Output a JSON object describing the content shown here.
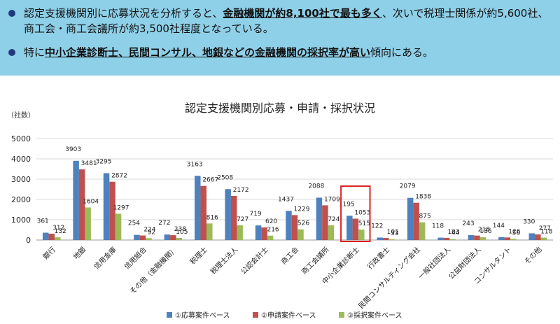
{
  "bullets": [
    {
      "parts": [
        {
          "t": "認定支援機関別に応募状況を分析すると、"
        },
        {
          "t": "金融機関が約8,100社で最も多く",
          "b": true
        },
        {
          "t": "、次いで税理士関係が約5,600社、商工会・商工会議所が約3,500社程度となっている。"
        }
      ]
    },
    {
      "parts": [
        {
          "t": "特に"
        },
        {
          "t": "中小企業診断士、民間コンサル、地銀などの金融機関の採択率が高い",
          "b": true
        },
        {
          "t": "傾向にある。"
        }
      ]
    }
  ],
  "colors": {
    "banner": "#8fd0e9",
    "bullet": "#1f3a7a",
    "series": [
      "#4f81bd",
      "#c0504d",
      "#9bbb59"
    ],
    "highlight": "#e02020",
    "grid": "#d9d9d9"
  },
  "chart_data": {
    "type": "bar",
    "title": "認定支援機関別応募・申請・採択状況",
    "ylabel": "（社数）",
    "xlabel": "",
    "ylim": [
      0,
      5000
    ],
    "yticks": [
      0,
      1000,
      2000,
      3000,
      4000,
      5000
    ],
    "grid": true,
    "legend_position": "bottom",
    "categories": [
      "銀行",
      "地銀",
      "信用金庫",
      "信用組合",
      "その他（金融機関）",
      "税理士",
      "税理士法人",
      "公認会計士",
      "商工会",
      "商工会議所",
      "中小企業診断士",
      "行政書士",
      "民間コンサルティング会社",
      "一般社団法人",
      "公益財団法人",
      "コンサルタント",
      "その他"
    ],
    "series": [
      {
        "name": "①応募案件ベース",
        "values": [
          361,
          3903,
          3295,
          254,
          272,
          3163,
          2508,
          719,
          1437,
          2088,
          1195,
          122,
          2079,
          118,
          243,
          144,
          330
        ]
      },
      {
        "name": "②申請案件ベース",
        "values": [
          312,
          3481,
          2872,
          224,
          238,
          2667,
          2172,
          620,
          1229,
          1709,
          1053,
          101,
          1838,
          103,
          218,
          126,
          277
        ]
      },
      {
        "name": "③採択案件ベース",
        "values": [
          132,
          1604,
          1297,
          92,
          105,
          816,
          727,
          216,
          526,
          724,
          515,
          33,
          875,
          44,
          136,
          56,
          118
        ]
      }
    ],
    "highlight_category": "中小企業診断士"
  }
}
